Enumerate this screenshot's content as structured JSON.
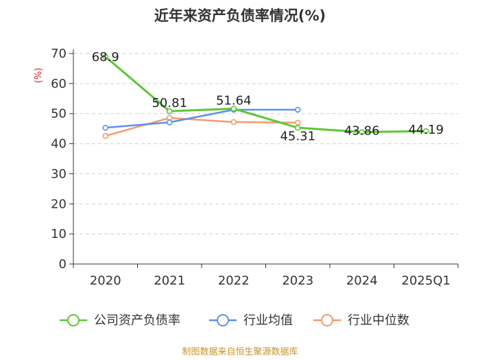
{
  "chart_data": {
    "type": "line",
    "title": "近年来资产负债率情况(%)",
    "ylabel": "(%)",
    "xlabel": "",
    "categories": [
      "2020",
      "2021",
      "2022",
      "2023",
      "2024",
      "2025Q1"
    ],
    "yticks": [
      "0",
      "10",
      "20",
      "30",
      "40",
      "50",
      "60",
      "70"
    ],
    "ylim": [
      0,
      70
    ],
    "series": [
      {
        "name": "公司资产负债率",
        "color": "#5ac832",
        "values": [
          68.9,
          50.81,
          51.64,
          45.31,
          43.86,
          44.19
        ],
        "labels": [
          "68.9",
          "50.81",
          "51.64",
          "45.31",
          "43.86",
          "44.19"
        ]
      },
      {
        "name": "行业均值",
        "color": "#5b8ff0",
        "values": [
          45.3,
          47.1,
          51.3,
          51.3,
          null,
          null
        ]
      },
      {
        "name": "行业中位数",
        "color": "#f59a6a",
        "values": [
          42.6,
          48.6,
          47.2,
          47.0,
          null,
          null
        ]
      }
    ],
    "grid": true,
    "legend": "bottom-center"
  },
  "source": "制图数据来自恒生聚源数据库"
}
